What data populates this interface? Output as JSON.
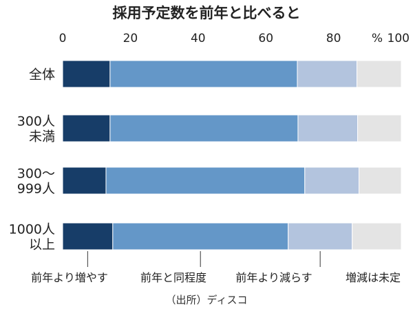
{
  "chart_data": {
    "type": "bar",
    "orientation": "horizontal",
    "stacked": true,
    "title": "採用予定数を前年と比べると",
    "xlim": [
      0,
      100
    ],
    "x_ticks": [
      "0",
      "20",
      "40",
      "60",
      "80",
      "100"
    ],
    "x_unit": "%",
    "categories": [
      [
        "全体"
      ],
      [
        "300人",
        "未満"
      ],
      [
        "300〜",
        "999人"
      ],
      [
        "1000人",
        "以上"
      ]
    ],
    "series": [
      {
        "name": "前年より増やす",
        "color": "#173d68",
        "values": [
          14.0,
          14.0,
          12.8,
          14.8
        ]
      },
      {
        "name": "前年と同程度",
        "color": "#6497c8",
        "values": [
          55.3,
          55.5,
          58.7,
          51.8
        ]
      },
      {
        "name": "前年より減らす",
        "color": "#b3c4de",
        "values": [
          17.6,
          17.6,
          16.0,
          18.9
        ]
      },
      {
        "name": "増減は未定",
        "color": "#e4e4e4",
        "values": [
          13.1,
          12.9,
          12.5,
          14.5
        ]
      }
    ],
    "source": "（出所）ディスコ",
    "grid": false,
    "legend_position": "bottom"
  }
}
